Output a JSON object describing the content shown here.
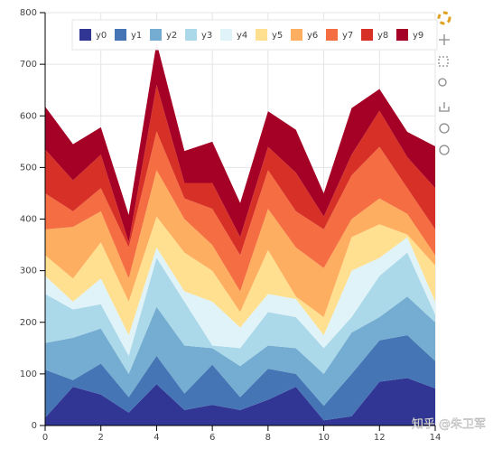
{
  "chart_data": {
    "type": "stacked_area",
    "x": [
      0,
      1,
      2,
      3,
      4,
      5,
      6,
      7,
      8,
      9,
      10,
      11,
      12,
      13,
      14
    ],
    "xlim": [
      0,
      14
    ],
    "xticks": [
      0,
      2,
      4,
      6,
      8,
      10,
      12,
      14
    ],
    "ylim": [
      0,
      800
    ],
    "yticks": [
      0,
      100,
      200,
      300,
      400,
      500,
      600,
      700,
      800
    ],
    "grid": true,
    "legend": "top",
    "series": [
      {
        "name": "y0",
        "color": "#313695",
        "values": [
          15,
          75,
          60,
          25,
          80,
          30,
          40,
          30,
          50,
          75,
          10,
          18,
          85,
          92,
          72
        ]
      },
      {
        "name": "y1",
        "color": "#4575b4",
        "values": [
          93,
          13,
          60,
          30,
          55,
          32,
          78,
          25,
          60,
          25,
          28,
          82,
          80,
          83,
          53
        ]
      },
      {
        "name": "y2",
        "color": "#74add1",
        "values": [
          52,
          82,
          68,
          45,
          95,
          93,
          32,
          60,
          45,
          50,
          62,
          80,
          45,
          75,
          75
        ]
      },
      {
        "name": "y3",
        "color": "#abd9e9",
        "values": [
          95,
          55,
          47,
          35,
          95,
          85,
          5,
          35,
          65,
          60,
          50,
          30,
          80,
          85,
          15
        ]
      },
      {
        "name": "y4",
        "color": "#e0f3f8",
        "values": [
          35,
          15,
          50,
          40,
          20,
          20,
          85,
          40,
          35,
          35,
          25,
          90,
          35,
          30,
          25
        ]
      },
      {
        "name": "y5",
        "color": "#fee090",
        "values": [
          40,
          45,
          70,
          65,
          60,
          75,
          60,
          30,
          85,
          5,
          35,
          65,
          65,
          5,
          70
        ]
      },
      {
        "name": "y6",
        "color": "#fdae61",
        "values": [
          50,
          100,
          60,
          45,
          90,
          65,
          50,
          40,
          80,
          95,
          95,
          35,
          50,
          40,
          20
        ]
      },
      {
        "name": "y7",
        "color": "#f46d43",
        "values": [
          70,
          30,
          45,
          60,
          75,
          40,
          70,
          70,
          75,
          70,
          75,
          85,
          100,
          50,
          50
        ]
      },
      {
        "name": "y8",
        "color": "#d73027",
        "values": [
          85,
          60,
          65,
          10,
          90,
          30,
          50,
          35,
          45,
          75,
          25,
          40,
          70,
          60,
          80
        ]
      },
      {
        "name": "y9",
        "color": "#a50026",
        "values": [
          83,
          70,
          53,
          53,
          82,
          62,
          80,
          66,
          69,
          83,
          45,
          90,
          42,
          49,
          81
        ]
      }
    ],
    "watermark": "知乎 @朱卫军"
  }
}
